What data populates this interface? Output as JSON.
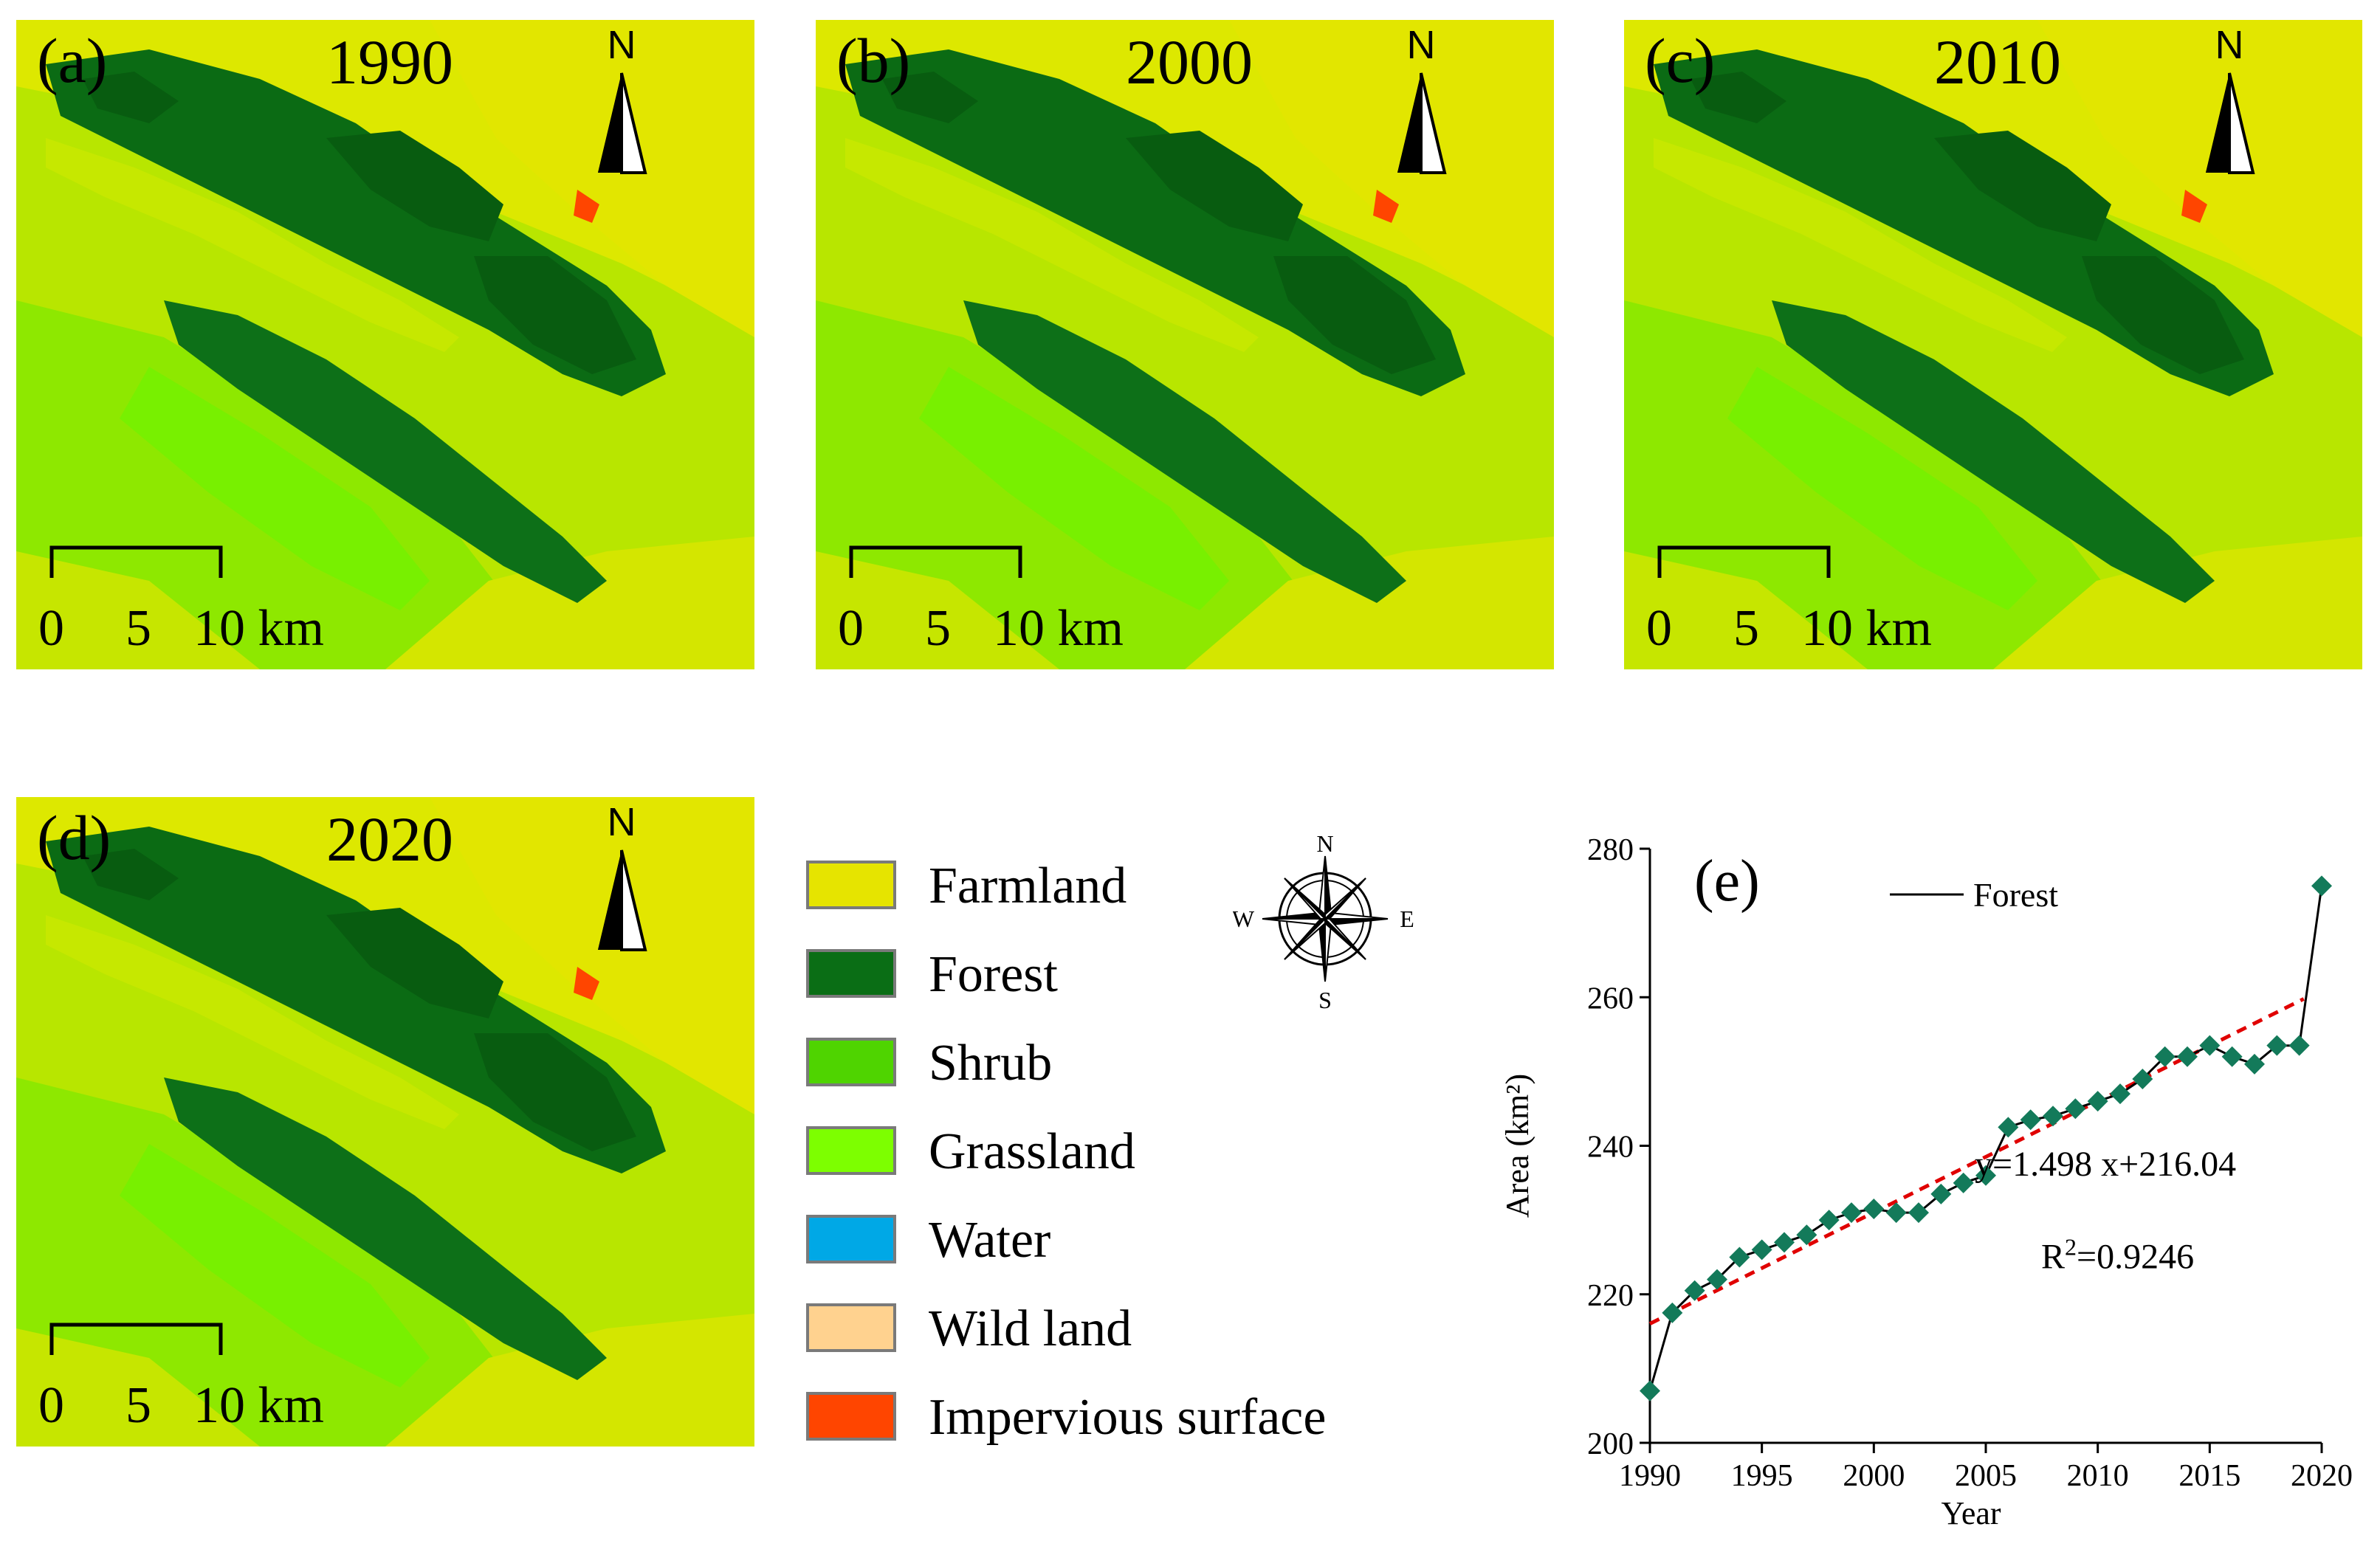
{
  "panels": [
    {
      "label": "(a)",
      "year": "1990",
      "scale": {
        "t0": "0",
        "t1": "5",
        "t2": "10 km"
      }
    },
    {
      "label": "(b)",
      "year": "2000",
      "scale": {
        "t0": "0",
        "t1": "5",
        "t2": "10 km"
      }
    },
    {
      "label": "(c)",
      "year": "2010",
      "scale": {
        "t0": "0",
        "t1": "5",
        "t2": "10 km"
      }
    },
    {
      "label": "(d)",
      "year": "2020",
      "scale": {
        "t0": "0",
        "t1": "5",
        "t2": "10 km"
      }
    }
  ],
  "north_label": "N",
  "compass": {
    "n": "N",
    "s": "S",
    "e": "E",
    "w": "W"
  },
  "legend": [
    {
      "label": "Farmland",
      "color": "#e6e400"
    },
    {
      "label": "Forest",
      "color": "#0a6e15"
    },
    {
      "label": "Shrub",
      "color": "#4fd400"
    },
    {
      "label": "Grassland",
      "color": "#7dff00"
    },
    {
      "label": "Water",
      "color": "#00a8e6"
    },
    {
      "label": "Wild land",
      "color": "#ffd28f"
    },
    {
      "label": "Impervious surface",
      "color": "#ff4500"
    }
  ],
  "chart_data": {
    "type": "line",
    "panel_label": "(e)",
    "xlabel": "Year",
    "ylabel": "Area (km²)",
    "xlim": [
      1990,
      2020
    ],
    "ylim": [
      200,
      280
    ],
    "xticks": [
      1990,
      1995,
      2000,
      2005,
      2010,
      2015,
      2020
    ],
    "yticks": [
      200,
      220,
      240,
      260,
      280
    ],
    "legend": "Forest",
    "series": [
      {
        "name": "Forest",
        "color": "#000000",
        "marker_color": "#137a5a",
        "x": [
          1990,
          1991,
          1992,
          1993,
          1994,
          1995,
          1996,
          1997,
          1998,
          1999,
          2000,
          2001,
          2002,
          2003,
          2004,
          2005,
          2006,
          2007,
          2008,
          2009,
          2010,
          2011,
          2012,
          2013,
          2014,
          2015,
          2016,
          2017,
          2018,
          2019,
          2020
        ],
        "y": [
          207,
          217.5,
          220.5,
          222,
          225,
          226,
          227,
          228,
          230,
          231,
          231.5,
          231,
          231,
          233.5,
          235,
          236,
          242.5,
          243.5,
          244,
          245,
          246,
          247,
          249,
          252,
          252,
          253.5,
          252,
          251,
          253.5,
          253.5,
          275
        ]
      }
    ],
    "trendline": {
      "slope": 1.498,
      "intercept": 216.04,
      "color": "#e00000",
      "equation": "y=1.498 x+216.04",
      "r2_prefix": "R",
      "r2_sup": "2",
      "r2_value": "=0.9246"
    }
  }
}
